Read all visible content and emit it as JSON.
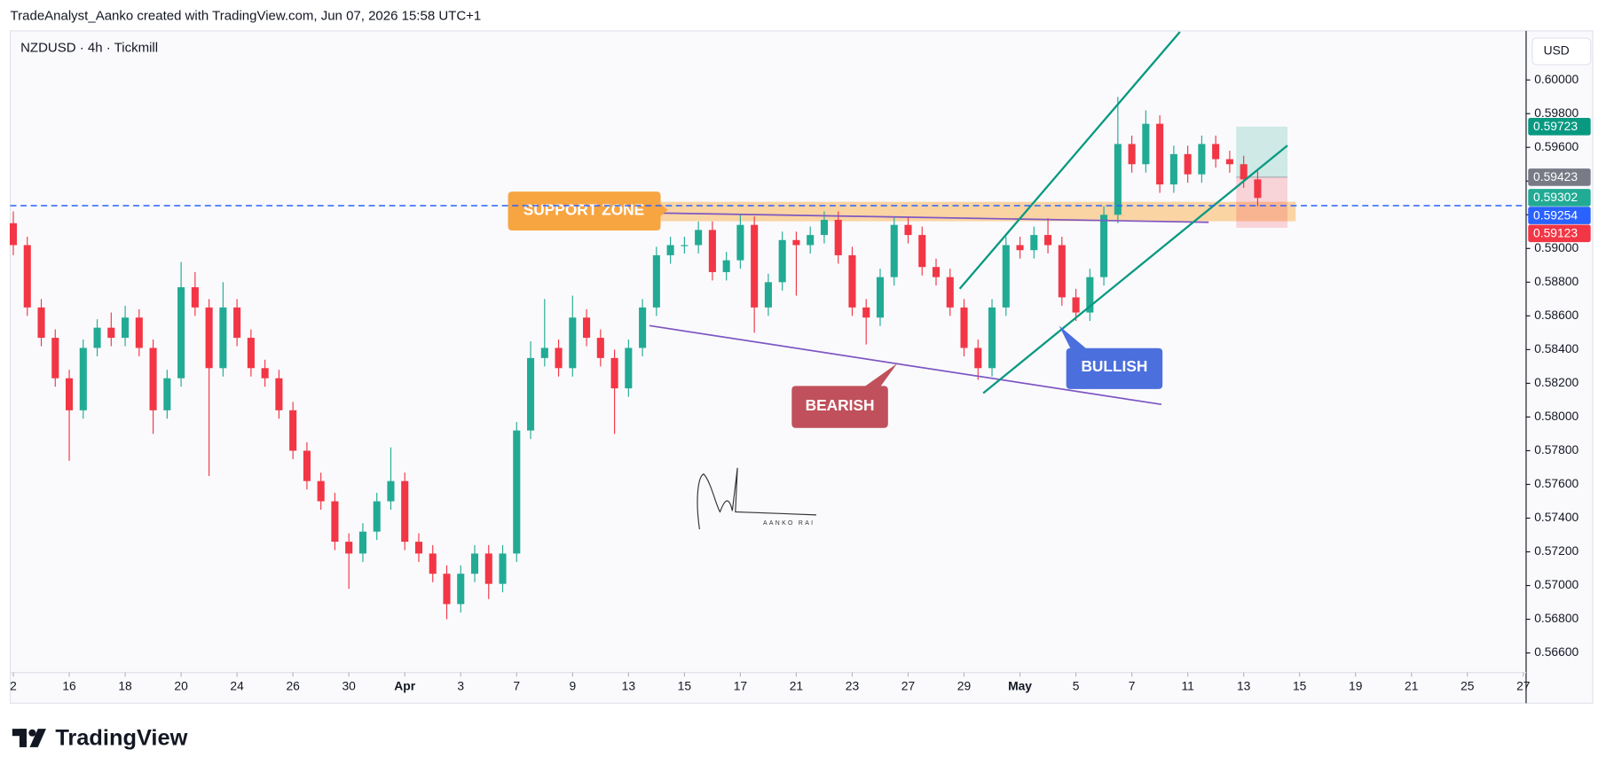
{
  "header": "TradeAnalyst_Aanko created with TradingView.com, Jun 07, 2026 15:58 UTC+1",
  "brand": "TradingView",
  "chart_data": {
    "type": "candlestick",
    "title": "NZDUSD · 4h · Tickmill",
    "currency": "USD",
    "up_color": "#22ab94",
    "down_color": "#f23645",
    "grid": false,
    "open": [
      0.5915,
      0.5902,
      0.5865,
      0.5847,
      0.5823,
      0.5804,
      0.5841,
      0.5853,
      0.5847,
      0.5859,
      0.5841,
      0.5804,
      0.5823,
      0.5877,
      0.5865,
      0.5829,
      0.5865,
      0.5847,
      0.5829,
      0.5823,
      0.5804,
      0.578,
      0.5762,
      0.575,
      0.5726,
      0.5719,
      0.5732,
      0.575,
      0.5762,
      0.5726,
      0.5719,
      0.5707,
      0.5689,
      0.5707,
      0.5719,
      0.5701,
      0.5719,
      0.5792,
      0.5835,
      0.5841,
      0.5829,
      0.5859,
      0.5847,
      0.5835,
      0.5817,
      0.5841,
      0.5865,
      0.5896,
      0.5902,
      0.5902,
      0.5911,
      0.5886,
      0.5893,
      0.5914,
      0.5865,
      0.588,
      0.5905,
      0.5902,
      0.5908,
      0.5917,
      0.5896,
      0.5865,
      0.5859,
      0.5883,
      0.5914,
      0.5908,
      0.5889,
      0.5883,
      0.5865,
      0.5841,
      0.5829,
      0.5865,
      0.5902,
      0.5899,
      0.5908,
      0.5902,
      0.5871,
      0.5862,
      0.5883,
      0.592,
      0.5962,
      0.595,
      0.5974,
      0.5938,
      0.5956,
      0.5944,
      0.5962,
      0.5953,
      0.595,
      0.5941
    ],
    "high": [
      0.5922,
      0.5907,
      0.587,
      0.5852,
      0.5828,
      0.5846,
      0.5858,
      0.5862,
      0.5866,
      0.5864,
      0.5846,
      0.5828,
      0.5892,
      0.5886,
      0.587,
      0.588,
      0.587,
      0.5852,
      0.5834,
      0.5828,
      0.5809,
      0.5785,
      0.5767,
      0.5755,
      0.5731,
      0.5737,
      0.5755,
      0.5782,
      0.5767,
      0.5731,
      0.5724,
      0.5712,
      0.5712,
      0.5724,
      0.5724,
      0.5724,
      0.5797,
      0.5845,
      0.587,
      0.5846,
      0.5872,
      0.5864,
      0.5852,
      0.584,
      0.5846,
      0.587,
      0.5901,
      0.5907,
      0.5907,
      0.5916,
      0.5916,
      0.5898,
      0.592,
      0.5919,
      0.5885,
      0.591,
      0.591,
      0.5913,
      0.5922,
      0.5922,
      0.5901,
      0.587,
      0.5888,
      0.5919,
      0.5919,
      0.5913,
      0.5894,
      0.5888,
      0.587,
      0.5846,
      0.587,
      0.5907,
      0.5907,
      0.5913,
      0.5918,
      0.5907,
      0.5876,
      0.5888,
      0.5925,
      0.599,
      0.5967,
      0.5982,
      0.5979,
      0.5961,
      0.5961,
      0.5967,
      0.5967,
      0.5958,
      0.5955,
      0.5946
    ],
    "low": [
      0.5896,
      0.586,
      0.5842,
      0.5818,
      0.5774,
      0.5799,
      0.5836,
      0.5842,
      0.5842,
      0.5836,
      0.579,
      0.5799,
      0.5818,
      0.586,
      0.5765,
      0.5824,
      0.5842,
      0.5824,
      0.5818,
      0.5799,
      0.5775,
      0.5757,
      0.5745,
      0.5721,
      0.5698,
      0.5714,
      0.5727,
      0.5745,
      0.5721,
      0.5714,
      0.5702,
      0.568,
      0.5684,
      0.5702,
      0.5692,
      0.5696,
      0.5714,
      0.5787,
      0.583,
      0.5824,
      0.5824,
      0.5842,
      0.583,
      0.579,
      0.5812,
      0.5836,
      0.586,
      0.5891,
      0.5897,
      0.5897,
      0.5881,
      0.5881,
      0.5888,
      0.585,
      0.586,
      0.5875,
      0.5872,
      0.5897,
      0.5903,
      0.5891,
      0.586,
      0.5843,
      0.5854,
      0.5878,
      0.5903,
      0.5884,
      0.5878,
      0.586,
      0.5836,
      0.5822,
      0.5824,
      0.586,
      0.5894,
      0.5894,
      0.5897,
      0.5866,
      0.5857,
      0.5857,
      0.5878,
      0.5915,
      0.5945,
      0.5945,
      0.5933,
      0.5933,
      0.5939,
      0.5939,
      0.5948,
      0.5945,
      0.5936,
      0.5925
    ],
    "close": [
      0.5902,
      0.5865,
      0.5847,
      0.5823,
      0.5804,
      0.5841,
      0.5853,
      0.5847,
      0.5859,
      0.5841,
      0.5804,
      0.5823,
      0.5877,
      0.5865,
      0.5829,
      0.5865,
      0.5847,
      0.5829,
      0.5823,
      0.5804,
      0.578,
      0.5762,
      0.575,
      0.5726,
      0.5719,
      0.5732,
      0.575,
      0.5762,
      0.5726,
      0.5719,
      0.5707,
      0.5689,
      0.5707,
      0.5719,
      0.5701,
      0.5719,
      0.5792,
      0.5835,
      0.5841,
      0.5829,
      0.5859,
      0.5847,
      0.5835,
      0.5817,
      0.5841,
      0.5865,
      0.5896,
      0.5902,
      0.5902,
      0.5911,
      0.5886,
      0.5893,
      0.5914,
      0.5865,
      0.588,
      0.5905,
      0.5902,
      0.5908,
      0.5917,
      0.5896,
      0.5865,
      0.5859,
      0.5883,
      0.5914,
      0.5908,
      0.5889,
      0.5883,
      0.5865,
      0.5841,
      0.5829,
      0.5865,
      0.5902,
      0.5899,
      0.5908,
      0.5902,
      0.5871,
      0.5862,
      0.5883,
      0.592,
      0.5962,
      0.595,
      0.5974,
      0.5938,
      0.5956,
      0.5944,
      0.5962,
      0.5953,
      0.595,
      0.5941,
      0.593
    ],
    "xlim": [
      -0.22,
      108.2
    ],
    "xticks": [
      {
        "value": 0,
        "label": "2"
      },
      {
        "value": 4,
        "label": "16"
      },
      {
        "value": 8,
        "label": "18"
      },
      {
        "value": 12,
        "label": "20"
      },
      {
        "value": 16,
        "label": "24"
      },
      {
        "value": 20,
        "label": "26"
      },
      {
        "value": 24,
        "label": "30"
      },
      {
        "value": 28,
        "label": "Apr"
      },
      {
        "value": 32,
        "label": "3"
      },
      {
        "value": 36,
        "label": "7"
      },
      {
        "value": 40,
        "label": "9"
      },
      {
        "value": 44,
        "label": "13"
      },
      {
        "value": 48,
        "label": "15"
      },
      {
        "value": 52,
        "label": "17"
      },
      {
        "value": 56,
        "label": "21"
      },
      {
        "value": 60,
        "label": "23"
      },
      {
        "value": 64,
        "label": "27"
      },
      {
        "value": 68,
        "label": "29"
      },
      {
        "value": 72,
        "label": "May"
      },
      {
        "value": 76,
        "label": "5"
      },
      {
        "value": 80,
        "label": "7"
      },
      {
        "value": 84,
        "label": "11"
      },
      {
        "value": 88,
        "label": "13"
      },
      {
        "value": 92,
        "label": "15"
      },
      {
        "value": 96,
        "label": "19"
      },
      {
        "value": 100,
        "label": "21"
      },
      {
        "value": 104,
        "label": "25"
      },
      {
        "value": 108,
        "label": "27"
      }
    ],
    "ylim": [
      0.56484,
      0.60291
    ],
    "yticks": [
      {
        "value": 0.566,
        "label": "0.56600"
      },
      {
        "value": 0.568,
        "label": "0.56800"
      },
      {
        "value": 0.57,
        "label": "0.57000"
      },
      {
        "value": 0.572,
        "label": "0.57200"
      },
      {
        "value": 0.574,
        "label": "0.57400"
      },
      {
        "value": 0.576,
        "label": "0.57600"
      },
      {
        "value": 0.578,
        "label": "0.57800"
      },
      {
        "value": 0.58,
        "label": "0.58000"
      },
      {
        "value": 0.582,
        "label": "0.58200"
      },
      {
        "value": 0.584,
        "label": "0.58400"
      },
      {
        "value": 0.586,
        "label": "0.58600"
      },
      {
        "value": 0.588,
        "label": "0.58800"
      },
      {
        "value": 0.59,
        "label": "0.59000"
      },
      {
        "value": 0.592,
        "label": "0.59200"
      },
      {
        "value": 0.594,
        "label": "0.59400"
      },
      {
        "value": 0.596,
        "label": "0.59600"
      },
      {
        "value": 0.598,
        "label": "0.59800"
      },
      {
        "value": 0.6,
        "label": "0.60000"
      }
    ],
    "price_labels": [
      {
        "value": 0.59723,
        "color": "#089981"
      },
      {
        "value": 0.59423,
        "color": "#787b86"
      },
      {
        "value": 0.59302,
        "color": "#22ab94"
      },
      {
        "value": 0.59254,
        "color": "#2962ff",
        "dashed": true
      },
      {
        "value": 0.59123,
        "color": "#f23645"
      }
    ],
    "annotations": {
      "support_zone": "SUPPORT ZONE",
      "bearish": "BEARISH",
      "bullish": "BULLISH"
    },
    "signature": "AANKO RAI"
  }
}
